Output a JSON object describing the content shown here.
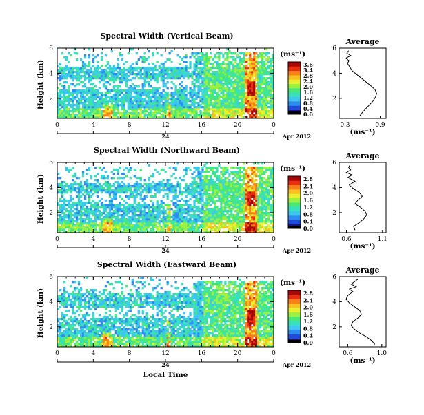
{
  "colors": {
    "colormap": [
      "#1a1080",
      "#1e4cd8",
      "#2f8df0",
      "#3cc6f0",
      "#38e0c0",
      "#48e878",
      "#9bf040",
      "#e8f030",
      "#f8c020",
      "#f88018",
      "#e83010",
      "#a80808"
    ],
    "background": "#ffffff",
    "axis": "#000000"
  },
  "shared": {
    "colorbar_unit": "(ms⁻¹)",
    "time_ticks": [
      "0",
      "4",
      "8",
      "12",
      "16",
      "20",
      "0"
    ],
    "day_label": "24",
    "month_label": "Apr 2012",
    "height_label": "Height (km)",
    "height_ticks": [
      "2",
      "4",
      "6"
    ],
    "avg_title": "Average",
    "avg_xlabel": "(ms⁻¹)",
    "xlabel_bottom": "Local Time"
  },
  "chart_data": [
    {
      "type": "heatmap",
      "title": "Spectral Width (Vertical Beam)",
      "x_unit": "local time (h)",
      "xlim": [
        0,
        24
      ],
      "ylim": [
        0.4,
        6
      ],
      "ylabel": "Height (km)",
      "colorbar": {
        "ticks": [
          "3.6",
          "3.4",
          "2.8",
          "2.4",
          "2.0",
          "1.6",
          "1.2",
          "0.8",
          "0.4",
          "0.0"
        ],
        "max": 3.6
      },
      "features": {
        "top_km": 5.6,
        "gap_start_km": 4.4,
        "hot_column_hour": 21.3,
        "hot_column_km": [
          2.2,
          3.2
        ]
      },
      "average": {
        "xticks": [
          "0.3",
          "0.9"
        ],
        "xlim": [
          0.2,
          1.0
        ],
        "profile_x": [
          0.55,
          0.6,
          0.66,
          0.72,
          0.78,
          0.82,
          0.84,
          0.81,
          0.74,
          0.66,
          0.58,
          0.5,
          0.42,
          0.38,
          0.34,
          0.37,
          0.31,
          0.4,
          0.33,
          0.36
        ],
        "profile_y": [
          0.6,
          0.9,
          1.2,
          1.5,
          1.8,
          2.1,
          2.4,
          2.7,
          3.0,
          3.3,
          3.6,
          3.9,
          4.2,
          4.5,
          4.8,
          5.0,
          5.2,
          5.4,
          5.6,
          5.8
        ]
      }
    },
    {
      "type": "heatmap",
      "title": "Spectral Width (Northward Beam)",
      "x_unit": "local time (h)",
      "xlim": [
        0,
        24
      ],
      "ylim": [
        0.4,
        6
      ],
      "ylabel": "Height (km)",
      "colorbar": {
        "ticks": [
          "2.8",
          "2.4",
          "2.0",
          "1.6",
          "1.2",
          "0.8",
          "0.4",
          "0.0"
        ],
        "max": 2.8
      },
      "features": {
        "top_km": 5.6,
        "gap_start_km": 4.2,
        "hot_column_hour": 21.3,
        "hot_column_km": [
          2.4,
          3.6
        ]
      },
      "average": {
        "xticks": [
          "0.6",
          "1.1"
        ],
        "xlim": [
          0.5,
          1.15
        ],
        "profile_x": [
          0.72,
          0.7,
          0.78,
          0.84,
          0.88,
          0.86,
          0.8,
          0.72,
          0.76,
          0.82,
          0.78,
          0.7,
          0.64,
          0.72,
          0.62,
          0.68,
          0.6,
          0.66,
          0.63,
          0.65
        ],
        "profile_y": [
          0.6,
          0.9,
          1.2,
          1.5,
          1.8,
          2.1,
          2.4,
          2.7,
          3.0,
          3.3,
          3.6,
          3.9,
          4.2,
          4.5,
          4.8,
          5.0,
          5.2,
          5.4,
          5.6,
          5.8
        ]
      }
    },
    {
      "type": "heatmap",
      "title": "Spectral Width (Eastward Beam)",
      "x_unit": "local time (h)",
      "xlim": [
        0,
        24
      ],
      "ylim": [
        0.4,
        6
      ],
      "ylabel": "Height (km)",
      "colorbar": {
        "ticks": [
          "2.8",
          "2.4",
          "2.0",
          "1.6",
          "1.2",
          "0.8",
          "0.4",
          "0.0"
        ],
        "max": 2.8
      },
      "features": {
        "top_km": 5.6,
        "gap_start_km": 4.6,
        "hot_column_hour": 21.3,
        "hot_column_km": [
          2.0,
          3.2
        ]
      },
      "average": {
        "xticks": [
          "0.6",
          "1.0"
        ],
        "xlim": [
          0.5,
          1.05
        ],
        "profile_x": [
          0.92,
          0.88,
          0.82,
          0.74,
          0.68,
          0.64,
          0.66,
          0.72,
          0.76,
          0.74,
          0.68,
          0.62,
          0.58,
          0.6,
          0.66,
          0.62,
          0.7,
          0.64,
          0.68,
          0.72
        ],
        "profile_y": [
          0.6,
          0.9,
          1.2,
          1.5,
          1.8,
          2.1,
          2.4,
          2.7,
          3.0,
          3.3,
          3.6,
          3.9,
          4.2,
          4.5,
          4.8,
          5.0,
          5.2,
          5.4,
          5.6,
          5.8
        ]
      }
    }
  ]
}
